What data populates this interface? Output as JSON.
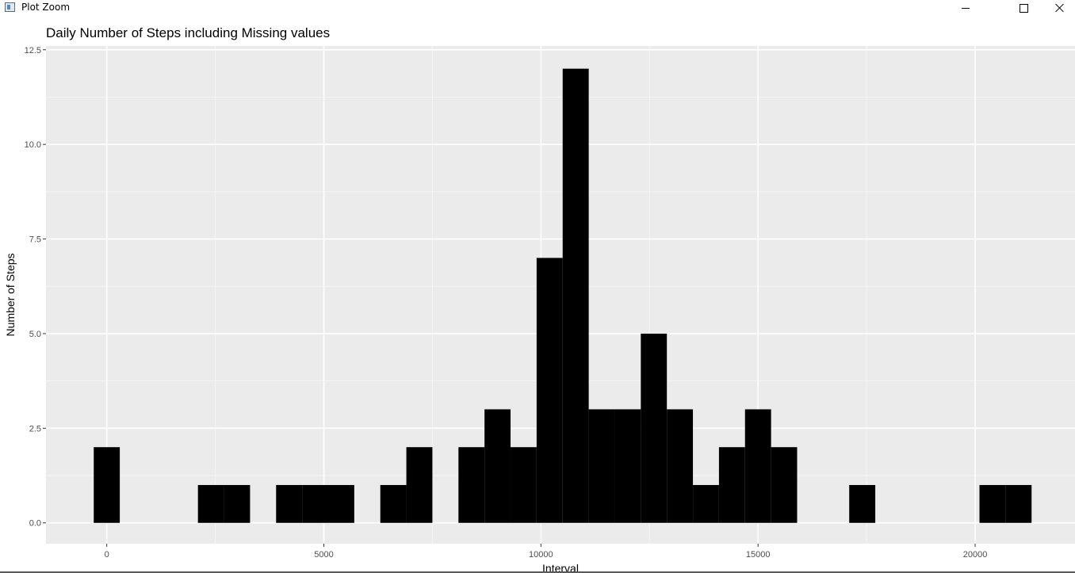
{
  "window": {
    "title": "Plot Zoom",
    "controls": [
      "minimize-icon",
      "maximize-icon",
      "close-icon"
    ]
  },
  "chart_data": {
    "type": "bar",
    "title": "Daily Number of Steps including Missing values",
    "xlabel": "Interval",
    "ylabel": "Number of Steps",
    "xlim": [
      -1400,
      22300
    ],
    "ylim": [
      -0.55,
      12.6
    ],
    "x_ticks": [
      0,
      5000,
      10000,
      15000,
      20000
    ],
    "x_tick_labels": [
      "0",
      "5000",
      "10000",
      "15000",
      "20000"
    ],
    "y_ticks": [
      0,
      2.5,
      5,
      7.5,
      10,
      12.5
    ],
    "y_tick_labels": [
      "0.0",
      "2.5",
      "5.0",
      "7.5",
      "10.0",
      "12.5"
    ],
    "grid": true,
    "bin_width": 600,
    "bin_centers": [
      0,
      2400,
      3000,
      4200,
      4800,
      5400,
      6600,
      7200,
      8400,
      9000,
      9600,
      10200,
      10800,
      11400,
      12000,
      12600,
      13200,
      13800,
      14400,
      15000,
      15600,
      17400,
      20400,
      21000
    ],
    "values": [
      2,
      1,
      1,
      1,
      1,
      1,
      1,
      2,
      2,
      3,
      2,
      7,
      12,
      3,
      3,
      5,
      3,
      1,
      2,
      3,
      2,
      1,
      1,
      1
    ],
    "colors": {
      "panel_bg": "#EBEBEB",
      "grid_major": "#FFFFFF",
      "grid_minor": "#F5F5F5",
      "bar_fill": "#000000",
      "tick_text": "#4D4D4D"
    }
  }
}
